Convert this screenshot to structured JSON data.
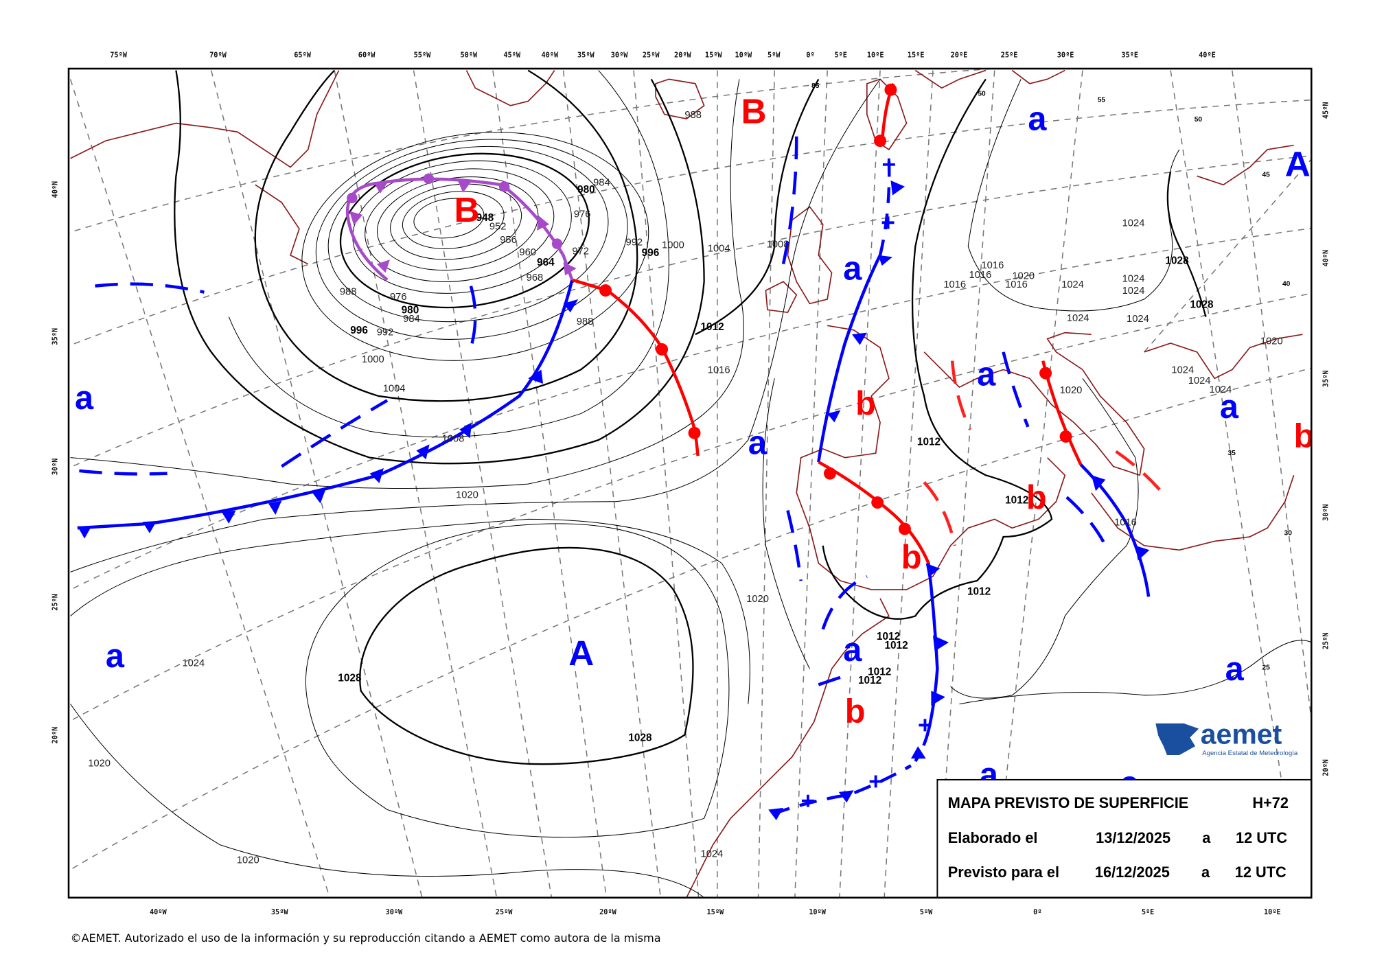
{
  "title_box": {
    "title": "MAPA PREVISTO DE SUPERFICIE",
    "horizon": "H+72",
    "elaborated_label": "Elaborado el",
    "elaborated_date": "13/12/2025",
    "elaborated_at": "a",
    "elaborated_time": "12 UTC",
    "forecast_label": "Previsto para el",
    "forecast_date": "16/12/2025",
    "forecast_at": "a",
    "forecast_time": "12 UTC"
  },
  "logo": {
    "name": "aemet",
    "subtitle": "Agencia Estatal de Meteorología",
    "color": "#1a4fa0"
  },
  "copyright": "©AEMET. Autorizado el uso de la información y su reproducción citando a AEMET como autora de la misma",
  "top_longitudes": [
    "75ºW",
    "70ºW",
    "65ºW",
    "60ºW",
    "55ºW",
    "50ºW",
    "45ºW",
    "40ºW",
    "35ºW",
    "30ºW",
    "25ºW",
    "20ºW",
    "15ºW",
    "10ºW",
    "5ºW",
    "0º",
    "5ºE",
    "10ºE",
    "15ºE",
    "20ºE",
    "25ºE",
    "30ºE",
    "35ºE",
    "40ºE"
  ],
  "bottom_longitudes": [
    "40ºW",
    "35ºW",
    "30ºW",
    "25ºW",
    "20ºW",
    "15ºW",
    "10ºW",
    "5ºW",
    "0º",
    "5ºE",
    "10ºE"
  ],
  "left_latitudes": [
    "40ºN",
    "35ºN",
    "30ºN",
    "25ºN",
    "20ºN"
  ],
  "right_latitudes": [
    "45ºN",
    "40ºN",
    "35ºN",
    "30ºN",
    "25ºN",
    "20ºN"
  ],
  "pressure_centers": {
    "high_label": "A",
    "low_label": "B",
    "rel_high_label": "a",
    "rel_low_label": "b",
    "high_color": "#0000ff",
    "low_color": "#ff0000",
    "occluded_color": "#a64ac9"
  },
  "isobar_labels": [
    "988",
    "984",
    "980",
    "976",
    "972",
    "964",
    "968",
    "960",
    "956",
    "952",
    "948",
    "1000",
    "992",
    "996",
    "1004",
    "1008",
    "1012",
    "1016",
    "988",
    "984",
    "980",
    "976",
    "988",
    "996",
    "992",
    "1000",
    "1004",
    "1008",
    "1020",
    "1024",
    "1028",
    "1028",
    "1020",
    "1020",
    "1024",
    "1020",
    "1012",
    "1012",
    "1012",
    "1012",
    "1012",
    "1012",
    "1012",
    "1016",
    "1020",
    "1024",
    "1024",
    "1024",
    "1024",
    "1024",
    "1024",
    "1028",
    "1028",
    "1016",
    "1016",
    "1016",
    "1016",
    "1020",
    "1020",
    "1024",
    "1024",
    "1024"
  ],
  "grid_labels": [
    "85",
    "55",
    "50",
    "45",
    "40",
    "35",
    "30",
    "25",
    "50"
  ]
}
